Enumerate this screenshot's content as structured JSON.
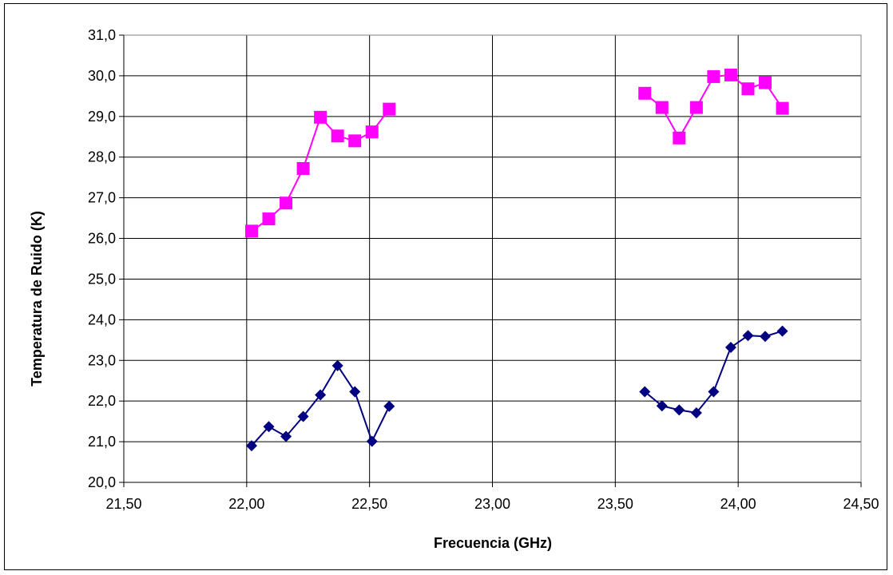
{
  "chart_data": {
    "type": "scatter",
    "title": "",
    "xlabel": "Frecuencia (GHz)",
    "ylabel": "Temperatura de Ruido (K)",
    "xlim": [
      21.5,
      24.5
    ],
    "ylim": [
      20.0,
      31.0
    ],
    "x_ticks": [
      21.5,
      22.0,
      22.5,
      23.0,
      23.5,
      24.0,
      24.5
    ],
    "x_tick_labels": [
      "21,50",
      "22,00",
      "22,50",
      "23,00",
      "23,50",
      "24,00",
      "24,50"
    ],
    "y_ticks": [
      20,
      21,
      22,
      23,
      24,
      25,
      26,
      27,
      28,
      29,
      30,
      31
    ],
    "y_tick_labels": [
      "20,0",
      "21,0",
      "22,0",
      "23,0",
      "24,0",
      "25,0",
      "26,0",
      "27,0",
      "28,0",
      "29,0",
      "30,0",
      "31,0"
    ],
    "grid": true,
    "legend": "none",
    "series": [
      {
        "color": "#000080",
        "marker": "diamond",
        "segments": [
          [
            [
              22.02,
              20.9
            ],
            [
              22.09,
              21.37
            ],
            [
              22.16,
              21.13
            ],
            [
              22.23,
              21.62
            ],
            [
              22.3,
              22.15
            ],
            [
              22.37,
              22.87
            ],
            [
              22.44,
              22.23
            ],
            [
              22.51,
              21.01
            ],
            [
              22.58,
              21.87
            ]
          ],
          [
            [
              23.62,
              22.23
            ],
            [
              23.69,
              21.88
            ],
            [
              23.76,
              21.78
            ],
            [
              23.83,
              21.71
            ],
            [
              23.9,
              22.23
            ],
            [
              23.97,
              23.32
            ],
            [
              24.04,
              23.61
            ],
            [
              24.11,
              23.59
            ],
            [
              24.18,
              23.72
            ]
          ]
        ]
      },
      {
        "color": "#ff00ff",
        "marker": "square",
        "segments": [
          [
            [
              22.02,
              26.18
            ],
            [
              22.09,
              26.48
            ],
            [
              22.16,
              26.87
            ],
            [
              22.23,
              27.72
            ],
            [
              22.3,
              28.98
            ],
            [
              22.37,
              28.52
            ],
            [
              22.44,
              28.4
            ],
            [
              22.51,
              28.62
            ],
            [
              22.58,
              29.18
            ]
          ],
          [
            [
              23.62,
              29.57
            ],
            [
              23.69,
              29.22
            ],
            [
              23.76,
              28.47
            ],
            [
              23.83,
              29.22
            ],
            [
              23.9,
              29.98
            ],
            [
              23.97,
              30.02
            ],
            [
              24.04,
              29.68
            ],
            [
              24.11,
              29.83
            ],
            [
              24.18,
              29.2
            ]
          ]
        ]
      }
    ]
  }
}
